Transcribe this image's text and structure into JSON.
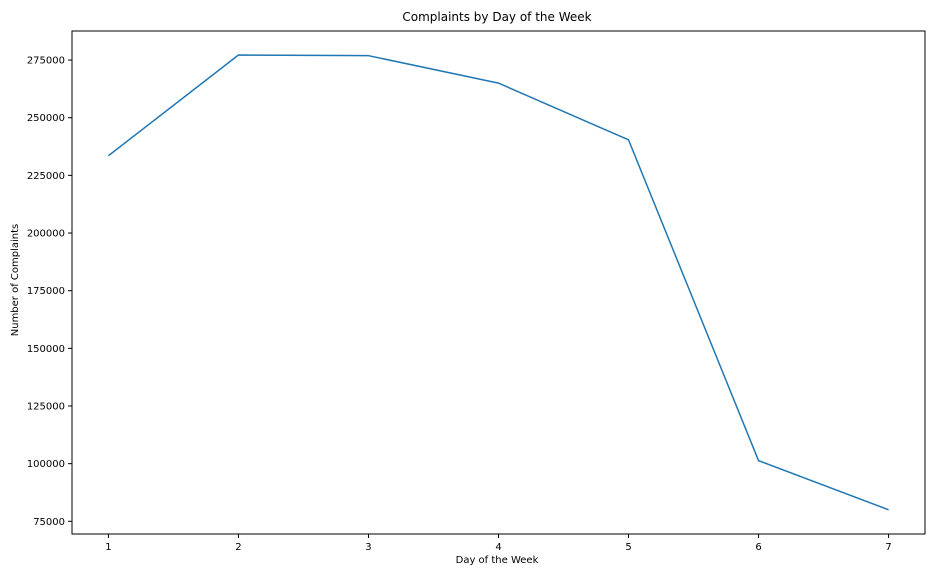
{
  "chart_data": {
    "type": "line",
    "title": "Complaints by Day of the Week",
    "xlabel": "Day of the Week",
    "ylabel": "Number of Complaints",
    "x": [
      1,
      2,
      3,
      4,
      5,
      6,
      7
    ],
    "series": [
      {
        "values": [
          233500,
          277200,
          276900,
          265000,
          240400,
          101300,
          80000
        ],
        "color": "#1f77b4"
      }
    ],
    "xlim": [
      0.72,
      7.28
    ],
    "ylim": [
      69500,
      287600
    ],
    "xticks": [
      1,
      2,
      3,
      4,
      5,
      6,
      7
    ],
    "yticks": [
      75000,
      100000,
      125000,
      150000,
      175000,
      200000,
      225000,
      250000,
      275000
    ],
    "grid": false,
    "legend": "none"
  }
}
